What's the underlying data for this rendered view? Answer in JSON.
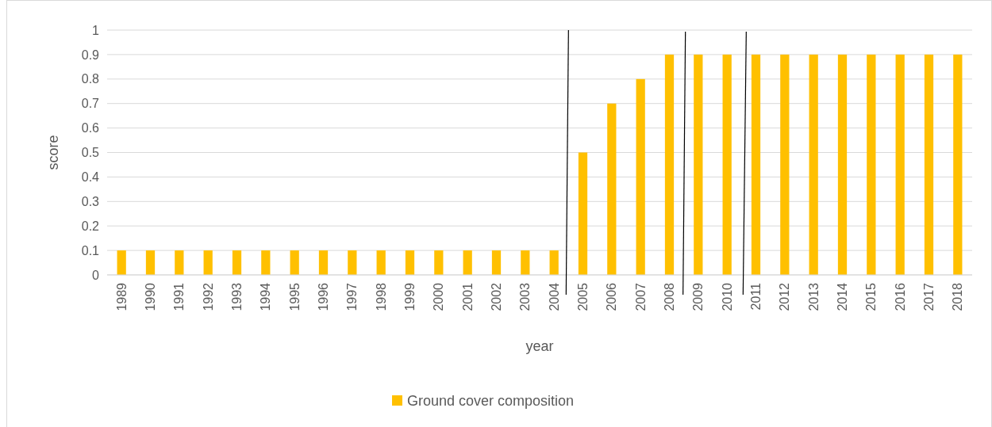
{
  "chart_data": {
    "type": "bar",
    "xlabel": "year",
    "ylabel": "score",
    "categories": [
      "1989",
      "1990",
      "1991",
      "1992",
      "1993",
      "1994",
      "1995",
      "1996",
      "1997",
      "1998",
      "1999",
      "2000",
      "2001",
      "2002",
      "2003",
      "2004",
      "2005",
      "2006",
      "2007",
      "2008",
      "2009",
      "2010",
      "2011",
      "2012",
      "2013",
      "2014",
      "2015",
      "2016",
      "2017",
      "2018"
    ],
    "series": [
      {
        "name": "Ground cover composition",
        "color": "#ffc000",
        "values": [
          0.1,
          0.1,
          0.1,
          0.1,
          0.1,
          0.1,
          0.1,
          0.1,
          0.1,
          0.1,
          0.1,
          0.1,
          0.1,
          0.1,
          0.1,
          0.1,
          0.5,
          0.7,
          0.8,
          0.9,
          0.9,
          0.9,
          0.9,
          0.9,
          0.9,
          0.9,
          0.9,
          0.9,
          0.9,
          0.9
        ]
      }
    ],
    "ylim": [
      0,
      1
    ],
    "yticks": [
      0,
      0.1,
      0.2,
      0.3,
      0.4,
      0.5,
      0.6,
      0.7,
      0.8,
      0.9,
      1
    ],
    "grid": "y",
    "legend": "bottom"
  }
}
